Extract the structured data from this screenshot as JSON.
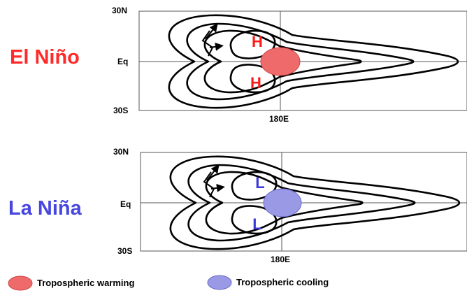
{
  "panels": [
    {
      "phase_label": "El Niño",
      "phase_color": "#ff2a2a",
      "lat_top": "30N",
      "lat_mid": "Eq",
      "lat_bottom": "30S",
      "lon_label": "180E",
      "anomaly_letter_upper": "H",
      "anomaly_letter_lower": "H",
      "anomaly_letter_color": "#ff1a1a",
      "blob_fill": "#ef6b6b",
      "blob_stroke": "#cc4444"
    },
    {
      "phase_label": "La Niña",
      "phase_color": "#4747e0",
      "lat_top": "30N",
      "lat_mid": "Eq",
      "lat_bottom": "30S",
      "lon_label": "180E",
      "anomaly_letter_upper": "L",
      "anomaly_letter_lower": "L",
      "anomaly_letter_color": "#3a3adb",
      "blob_fill": "#9999e6",
      "blob_stroke": "#6a6ac8"
    }
  ],
  "legend": {
    "warming_label": "Tropospheric warming",
    "warming_color": "#ef6b6b",
    "cooling_label": "Tropospheric cooling",
    "cooling_color": "#9999e6"
  }
}
